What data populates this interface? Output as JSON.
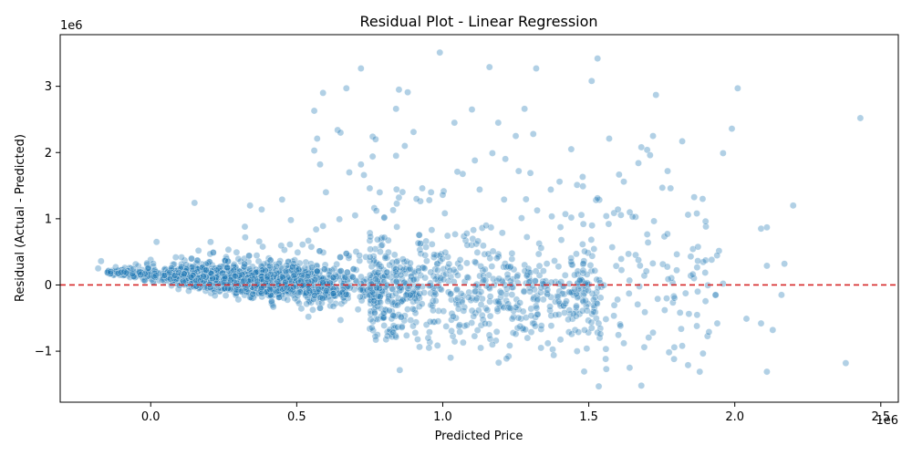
{
  "chart_data": {
    "type": "scatter",
    "title": "Residual Plot - Linear Regression",
    "xlabel": "Predicted Price",
    "ylabel": "Residual (Actual - Predicted)",
    "x_offset_label": "1e6",
    "y_offset_label": "1e6",
    "xlim": [
      -310000,
      2560000
    ],
    "ylim": [
      -1770000,
      3780000
    ],
    "x_ticks": [
      0,
      500000,
      1000000,
      1500000,
      2000000,
      2500000
    ],
    "x_tick_labels": [
      "0.0",
      "0.5",
      "1.0",
      "1.5",
      "2.0",
      "2.5"
    ],
    "y_ticks": [
      -1000000,
      0,
      1000000,
      2000000,
      3000000
    ],
    "y_tick_labels": [
      "−1",
      "0",
      "1",
      "2",
      "3"
    ],
    "reference_line": {
      "y": 0,
      "color": "#d62728",
      "style": "dashed"
    },
    "point_color": "#1f77b4",
    "point_opacity": 0.35,
    "grid": false,
    "series_note_points": [
      [
        -170000,
        360000
      ],
      [
        -180000,
        250000
      ],
      [
        -120000,
        270000
      ],
      [
        -90000,
        200000
      ],
      [
        -60000,
        240000
      ],
      [
        20000,
        650000
      ],
      [
        150000,
        1240000
      ],
      [
        340000,
        1200000
      ],
      [
        380000,
        1140000
      ],
      [
        450000,
        1290000
      ],
      [
        480000,
        980000
      ],
      [
        560000,
        2630000
      ],
      [
        570000,
        2210000
      ],
      [
        560000,
        2030000
      ],
      [
        580000,
        1820000
      ],
      [
        590000,
        2900000
      ],
      [
        600000,
        1400000
      ],
      [
        590000,
        890000
      ],
      [
        640000,
        2340000
      ],
      [
        650000,
        2300000
      ],
      [
        670000,
        2970000
      ],
      [
        680000,
        1700000
      ],
      [
        700000,
        1050000
      ],
      [
        720000,
        3270000
      ],
      [
        720000,
        1820000
      ],
      [
        730000,
        1660000
      ],
      [
        750000,
        1460000
      ],
      [
        760000,
        2240000
      ],
      [
        770000,
        2200000
      ],
      [
        760000,
        1940000
      ],
      [
        800000,
        1020000
      ],
      [
        830000,
        1130000
      ],
      [
        840000,
        2660000
      ],
      [
        850000,
        2950000
      ],
      [
        870000,
        2100000
      ],
      [
        880000,
        2910000
      ],
      [
        900000,
        2310000
      ],
      [
        910000,
        1300000
      ],
      [
        930000,
        1460000
      ],
      [
        960000,
        1400000
      ],
      [
        990000,
        3510000
      ],
      [
        1000000,
        1360000
      ],
      [
        1040000,
        2450000
      ],
      [
        1050000,
        1710000
      ],
      [
        1100000,
        2650000
      ],
      [
        1110000,
        1880000
      ],
      [
        1160000,
        3290000
      ],
      [
        1170000,
        1990000
      ],
      [
        1190000,
        2450000
      ],
      [
        1210000,
        1290000
      ],
      [
        1250000,
        2250000
      ],
      [
        1260000,
        1720000
      ],
      [
        1270000,
        1010000
      ],
      [
        1280000,
        2660000
      ],
      [
        1300000,
        1690000
      ],
      [
        1310000,
        2280000
      ],
      [
        1320000,
        3270000
      ],
      [
        1370000,
        1440000
      ],
      [
        1400000,
        1560000
      ],
      [
        1420000,
        1070000
      ],
      [
        1440000,
        2050000
      ],
      [
        1460000,
        1510000
      ],
      [
        1480000,
        1490000
      ],
      [
        1510000,
        3080000
      ],
      [
        1530000,
        3420000
      ],
      [
        1530000,
        1310000
      ],
      [
        1560000,
        1040000
      ],
      [
        1570000,
        2210000
      ],
      [
        1600000,
        1140000
      ],
      [
        1620000,
        1560000
      ],
      [
        1650000,
        1030000
      ],
      [
        1670000,
        1840000
      ],
      [
        1680000,
        2080000
      ],
      [
        1700000,
        2040000
      ],
      [
        1710000,
        1960000
      ],
      [
        1720000,
        2250000
      ],
      [
        1730000,
        2870000
      ],
      [
        1770000,
        1720000
      ],
      [
        1780000,
        1460000
      ],
      [
        1820000,
        2170000
      ],
      [
        1840000,
        1060000
      ],
      [
        1870000,
        1080000
      ],
      [
        1890000,
        1300000
      ],
      [
        1900000,
        960000
      ],
      [
        1960000,
        1990000
      ],
      [
        1990000,
        2360000
      ],
      [
        2010000,
        2970000
      ],
      [
        2090000,
        850000
      ],
      [
        2110000,
        870000
      ],
      [
        2200000,
        1200000
      ],
      [
        2430000,
        2520000
      ],
      [
        2110000,
        290000
      ],
      [
        2170000,
        320000
      ],
      [
        2160000,
        -150000
      ],
      [
        1960000,
        20000
      ],
      [
        1680000,
        -1520000
      ],
      [
        1880000,
        -1310000
      ],
      [
        2110000,
        -1310000
      ],
      [
        2380000,
        -1180000
      ],
      [
        1840000,
        -1210000
      ],
      [
        1640000,
        -1250000
      ],
      [
        1560000,
        -1270000
      ],
      [
        1380000,
        -1060000
      ],
      [
        1460000,
        -1000000
      ],
      [
        1690000,
        -940000
      ],
      [
        1820000,
        -920000
      ],
      [
        1130000,
        -950000
      ],
      [
        1170000,
        -900000
      ],
      [
        1070000,
        -870000
      ],
      [
        2040000,
        -510000
      ],
      [
        2090000,
        -580000
      ],
      [
        2130000,
        -680000
      ],
      [
        1940000,
        -580000
      ],
      [
        1870000,
        -620000
      ],
      [
        1760000,
        -380000
      ],
      [
        1720000,
        -720000
      ],
      [
        1620000,
        -880000
      ],
      [
        1540000,
        -740000
      ],
      [
        1510000,
        -650000
      ],
      [
        1360000,
        -880000
      ],
      [
        1290000,
        -800000
      ],
      [
        1250000,
        -740000
      ],
      [
        950000,
        -800000
      ],
      [
        860000,
        -640000
      ],
      [
        650000,
        -530000
      ],
      [
        540000,
        -480000
      ],
      [
        420000,
        -330000
      ],
      [
        300000,
        -220000
      ],
      [
        220000,
        -160000
      ],
      [
        130000,
        -90000
      ]
    ]
  }
}
